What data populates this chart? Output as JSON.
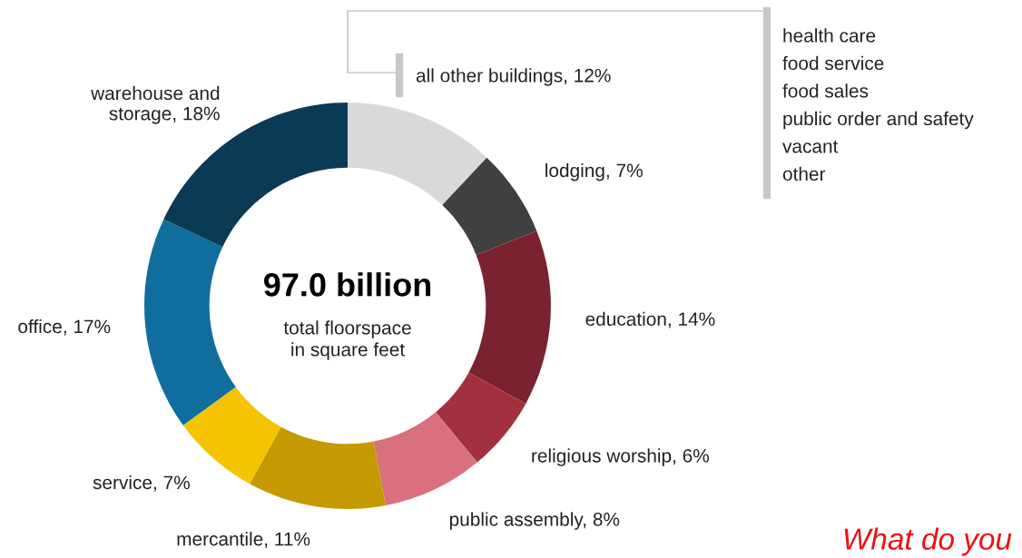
{
  "chart_data": {
    "type": "donut",
    "categories": [
      "all other buildings",
      "lodging",
      "education",
      "religious worship",
      "public assembly",
      "mercantile",
      "service",
      "office",
      "warehouse and\nstorage"
    ],
    "values": [
      12,
      7,
      14,
      6,
      8,
      11,
      7,
      17,
      18
    ],
    "value_labels": [
      "12%",
      "7%",
      "14%",
      "6%",
      "8%",
      "11%",
      "7%",
      "17%",
      "18%"
    ],
    "colors": [
      "#d9d9d9",
      "#404040",
      "#7b2230",
      "#a3303e",
      "#d9707e",
      "#c49a00",
      "#f5c400",
      "#0f6e9e",
      "#0b3a55"
    ],
    "annotations": [
      "97.0 billion",
      "total floorspace\nin square feet",
      "health care",
      "food service",
      "food sales",
      "public order and safety",
      "vacant",
      "other",
      "What do you"
    ]
  }
}
